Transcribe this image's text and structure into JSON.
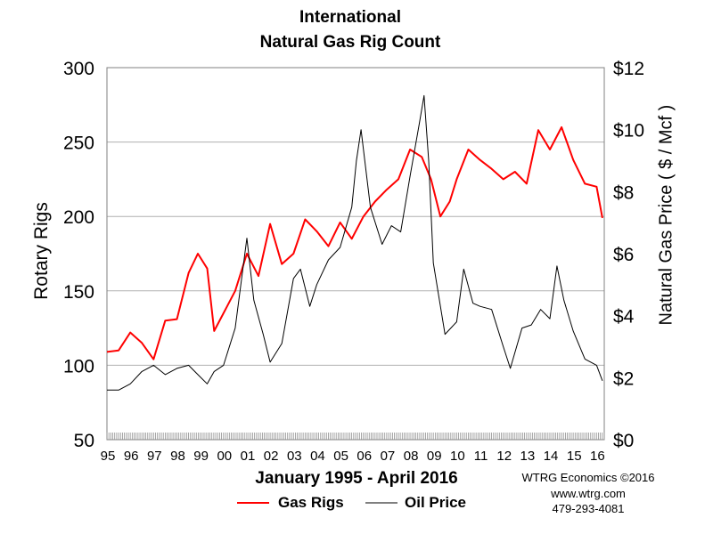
{
  "title_line1": "International",
  "title_line2": "Natural Gas Rig Count",
  "xlabel": "January 1995 - April 2016",
  "ylabel_left": "Rotary Rigs",
  "ylabel_right": "Natural Gas Price ( $ / Mcf )",
  "credit": [
    "WTRG Economics ©2016",
    "www.wtrg.com",
    "479-293-4081"
  ],
  "chart_data": {
    "type": "line",
    "title": "International Natural Gas Rig Count",
    "x_ticks": [
      "95",
      "96",
      "97",
      "98",
      "99",
      "00",
      "01",
      "02",
      "03",
      "04",
      "05",
      "06",
      "07",
      "08",
      "09",
      "10",
      "11",
      "12",
      "13",
      "14",
      "15",
      "16"
    ],
    "left_axis": {
      "label": "Rotary Rigs",
      "ylim": [
        50,
        300
      ],
      "ticks": [
        50,
        100,
        150,
        200,
        250,
        300
      ]
    },
    "right_axis": {
      "label": "Natural Gas Price ( $ / Mcf )",
      "ylim": [
        0,
        12
      ],
      "ticks": [
        "$0",
        "$2",
        "$4",
        "$6",
        "$8",
        "$10",
        "$12"
      ]
    },
    "grid": true,
    "legend": "bottom",
    "series": [
      {
        "name": "Gas Rigs",
        "axis": "left",
        "color": "#ff0000",
        "x": [
          1995.0,
          1995.5,
          1996.0,
          1996.5,
          1997.0,
          1997.5,
          1998.0,
          1998.5,
          1998.9,
          1999.3,
          1999.6,
          2000.0,
          2000.5,
          2001.0,
          2001.5,
          2002.0,
          2002.5,
          2003.0,
          2003.5,
          2004.0,
          2004.5,
          2005.0,
          2005.5,
          2006.0,
          2006.5,
          2007.0,
          2007.5,
          2008.0,
          2008.5,
          2008.9,
          2009.3,
          2009.7,
          2010.0,
          2010.5,
          2011.0,
          2011.5,
          2012.0,
          2012.5,
          2013.0,
          2013.5,
          2014.0,
          2014.5,
          2015.0,
          2015.5,
          2016.0,
          2016.25
        ],
        "y": [
          109,
          110,
          122,
          115,
          104,
          130,
          131,
          162,
          175,
          165,
          123,
          135,
          150,
          175,
          160,
          195,
          168,
          175,
          198,
          190,
          180,
          196,
          185,
          200,
          210,
          218,
          225,
          245,
          240,
          225,
          200,
          210,
          225,
          245,
          238,
          232,
          225,
          230,
          222,
          258,
          245,
          260,
          238,
          222,
          220,
          199
        ]
      },
      {
        "name": "Oil Price",
        "axis": "right",
        "color": "#000000",
        "x": [
          1995.0,
          1995.5,
          1996.0,
          1996.5,
          1997.0,
          1997.5,
          1998.0,
          1998.5,
          1998.9,
          1999.3,
          1999.6,
          2000.0,
          2000.5,
          2001.0,
          2001.3,
          2001.7,
          2002.0,
          2002.5,
          2003.0,
          2003.3,
          2003.7,
          2004.0,
          2004.5,
          2005.0,
          2005.5,
          2005.7,
          2005.9,
          2006.3,
          2006.8,
          2007.2,
          2007.6,
          2008.0,
          2008.4,
          2008.6,
          2008.8,
          2009.0,
          2009.5,
          2010.0,
          2010.3,
          2010.7,
          2011.0,
          2011.5,
          2012.0,
          2012.3,
          2012.8,
          2013.2,
          2013.6,
          2014.0,
          2014.3,
          2014.6,
          2015.0,
          2015.5,
          2016.0,
          2016.25
        ],
        "y": [
          1.6,
          1.6,
          1.8,
          2.2,
          2.4,
          2.1,
          2.3,
          2.4,
          2.1,
          1.8,
          2.2,
          2.4,
          3.6,
          6.5,
          4.5,
          3.4,
          2.5,
          3.1,
          5.2,
          5.5,
          4.3,
          5.0,
          5.8,
          6.2,
          7.5,
          9.0,
          10.0,
          7.5,
          6.3,
          6.9,
          6.7,
          8.5,
          10.2,
          11.1,
          9.0,
          5.7,
          3.4,
          3.8,
          5.5,
          4.4,
          4.3,
          4.2,
          3.0,
          2.3,
          3.6,
          3.7,
          4.2,
          3.9,
          5.6,
          4.5,
          3.5,
          2.6,
          2.4,
          1.9
        ]
      }
    ]
  }
}
